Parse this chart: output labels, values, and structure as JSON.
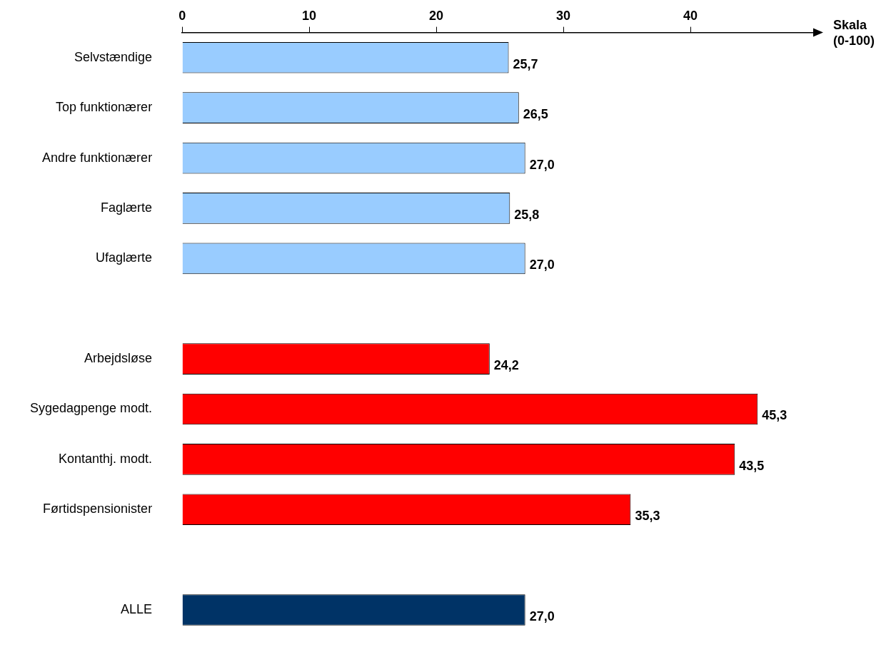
{
  "chart_data": {
    "type": "bar",
    "orientation": "horizontal",
    "xlabel": "Skala (0-100)",
    "categories": [
      "Selvstændige",
      "Top funktionærer",
      "Andre funktionærer",
      "Faglærte",
      "Ufaglærte",
      null,
      "Arbejdsløse",
      "Sygedagpenge modt.",
      "Kontanthj. modt.",
      "Førtidspensionister",
      null,
      "ALLE"
    ],
    "values": [
      25.7,
      26.5,
      27.0,
      25.8,
      27.0,
      null,
      24.2,
      45.3,
      43.5,
      35.3,
      null,
      27.0
    ],
    "colors": [
      "#99ccff",
      "#99ccff",
      "#99ccff",
      "#99ccff",
      "#99ccff",
      "#ffffff",
      "#ff0000",
      "#ff0000",
      "#ff0000",
      "#ff0000",
      "#ffffff",
      "#003366"
    ],
    "value_labels": [
      "25,7",
      "26,5",
      "27,0",
      "25,8",
      "27,0",
      null,
      "24,2",
      "45,3",
      "43,5",
      "35,3",
      null,
      "27,0"
    ],
    "xlim": [
      0,
      50
    ],
    "xticks": [
      0,
      10,
      20,
      30,
      40
    ]
  }
}
